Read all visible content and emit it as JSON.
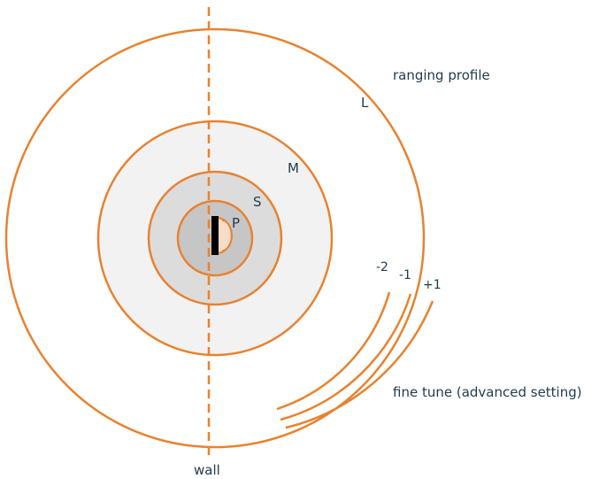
{
  "labels": {
    "ranging_profile": "ranging profile",
    "fine_tune": "fine tune (advanced setting)",
    "wall": "wall",
    "ring_L": "L",
    "ring_M": "M",
    "ring_S": "S",
    "ring_P": "P",
    "tune_minus2": "-2",
    "tune_minus1": "-1",
    "tune_plus1": "+1"
  },
  "colors": {
    "ring_stroke": "#e8822f",
    "ring_M_fill": "#f2f2f2",
    "ring_S_fill": "#dcdcdc",
    "ring_P_fill": "#c6c6c6",
    "sensor_body": "#000000",
    "sensor_face": "#f7dcc8",
    "text": "#1f3b4d"
  }
}
